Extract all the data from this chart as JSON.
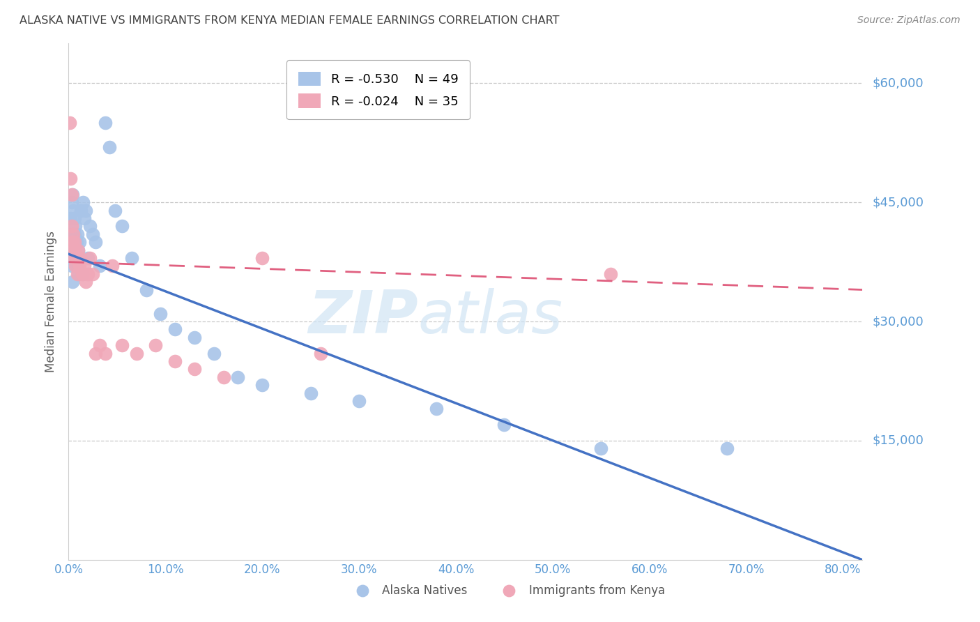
{
  "title": "ALASKA NATIVE VS IMMIGRANTS FROM KENYA MEDIAN FEMALE EARNINGS CORRELATION CHART",
  "source": "Source: ZipAtlas.com",
  "ylabel": "Median Female Earnings",
  "xlabel_ticks": [
    "0.0%",
    "10.0%",
    "20.0%",
    "30.0%",
    "40.0%",
    "50.0%",
    "60.0%",
    "70.0%",
    "80.0%"
  ],
  "ytick_labels": [
    "$60,000",
    "$45,000",
    "$30,000",
    "$15,000"
  ],
  "ytick_values": [
    60000,
    45000,
    30000,
    15000
  ],
  "xlim": [
    0.0,
    0.82
  ],
  "ylim": [
    0,
    65000
  ],
  "legend1_label": "Alaska Natives",
  "legend2_label": "Immigrants from Kenya",
  "legend1_r": "R = -0.530",
  "legend1_n": "N = 49",
  "legend2_r": "R = -0.024",
  "legend2_n": "N = 35",
  "blue_color": "#a8c4e8",
  "pink_color": "#f0a8b8",
  "blue_line_color": "#4472c4",
  "pink_line_color": "#e06080",
  "background_color": "#ffffff",
  "grid_color": "#c8c8c8",
  "title_color": "#404040",
  "axis_label_color": "#5b9bd5",
  "source_color": "#888888",
  "ylabel_color": "#606060",
  "watermark_text": "ZIPatlas",
  "watermark_color": "#d0e4f4",
  "blue_x": [
    0.001,
    0.002,
    0.002,
    0.003,
    0.003,
    0.004,
    0.004,
    0.005,
    0.005,
    0.006,
    0.006,
    0.007,
    0.007,
    0.008,
    0.008,
    0.009,
    0.009,
    0.01,
    0.01,
    0.011,
    0.012,
    0.013,
    0.014,
    0.015,
    0.016,
    0.018,
    0.02,
    0.022,
    0.025,
    0.028,
    0.032,
    0.038,
    0.042,
    0.048,
    0.055,
    0.065,
    0.08,
    0.095,
    0.11,
    0.13,
    0.15,
    0.175,
    0.2,
    0.25,
    0.3,
    0.38,
    0.45,
    0.55,
    0.68
  ],
  "blue_y": [
    41000,
    43000,
    39000,
    45000,
    37000,
    46000,
    35000,
    44000,
    38000,
    43000,
    41000,
    42000,
    39000,
    40000,
    37000,
    38000,
    41000,
    39000,
    36000,
    40000,
    38000,
    44000,
    36000,
    45000,
    43000,
    44000,
    38000,
    42000,
    41000,
    40000,
    37000,
    55000,
    52000,
    44000,
    42000,
    38000,
    34000,
    31000,
    29000,
    28000,
    26000,
    23000,
    22000,
    21000,
    20000,
    19000,
    17000,
    14000,
    14000
  ],
  "pink_x": [
    0.001,
    0.002,
    0.003,
    0.003,
    0.004,
    0.005,
    0.005,
    0.006,
    0.006,
    0.007,
    0.007,
    0.008,
    0.009,
    0.01,
    0.011,
    0.012,
    0.014,
    0.016,
    0.018,
    0.02,
    0.022,
    0.025,
    0.028,
    0.032,
    0.038,
    0.045,
    0.055,
    0.07,
    0.09,
    0.11,
    0.13,
    0.16,
    0.2,
    0.26,
    0.56
  ],
  "pink_y": [
    55000,
    48000,
    46000,
    42000,
    40000,
    39000,
    41000,
    38000,
    40000,
    37000,
    39000,
    38000,
    36000,
    39000,
    37000,
    38000,
    36000,
    37000,
    35000,
    36000,
    38000,
    36000,
    26000,
    27000,
    26000,
    37000,
    27000,
    26000,
    27000,
    25000,
    24000,
    23000,
    38000,
    26000,
    36000
  ],
  "blue_trend_x0": 0.0,
  "blue_trend_y0": 38500,
  "blue_trend_x1": 0.82,
  "blue_trend_y1": 0,
  "pink_trend_x0": 0.0,
  "pink_trend_y0": 37500,
  "pink_trend_x1": 0.82,
  "pink_trend_y1": 34000
}
